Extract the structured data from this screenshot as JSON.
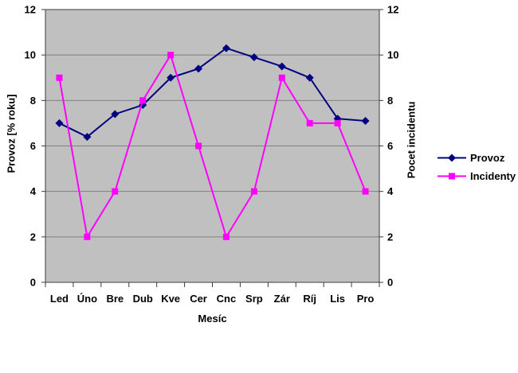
{
  "chart_data": {
    "type": "line",
    "categories": [
      "Led",
      "Úno",
      "Bre",
      "Dub",
      "Kve",
      "Cer",
      "Cnc",
      "Srp",
      "Zár",
      "Ríj",
      "Lis",
      "Pro"
    ],
    "series": [
      {
        "name": "Provoz",
        "axis": "left",
        "color": "#000080",
        "marker": "diamond",
        "values": [
          7,
          6.4,
          7.4,
          7.8,
          9,
          9.4,
          10.3,
          9.9,
          9.5,
          9,
          7.2,
          7.1
        ]
      },
      {
        "name": "Incidenty",
        "axis": "right",
        "color": "#FF00FF",
        "marker": "square",
        "values": [
          9,
          2,
          4,
          8,
          10,
          6,
          2,
          4,
          9,
          7,
          7,
          4
        ]
      }
    ],
    "xlabel": "Mesíc",
    "ylabel_left": "Provoz [% roku]",
    "ylabel_right": "Pocet incidentu",
    "ylim": [
      0,
      12
    ],
    "ytick_step": 2,
    "yticks": [
      0,
      2,
      4,
      6,
      8,
      10,
      12
    ],
    "grid": true,
    "legend_position": "right",
    "colors": {
      "plot_bg": "#C0C0C0",
      "grid": "#808080",
      "axis": "#3C3C3C",
      "text": "#000000",
      "page_bg": "#FFFFFF"
    }
  }
}
